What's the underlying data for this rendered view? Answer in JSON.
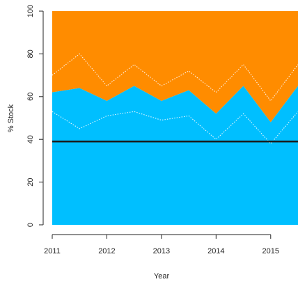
{
  "chart_data": {
    "type": "area",
    "title": "",
    "xlabel": "Year",
    "ylabel": "% Stock",
    "xlim": [
      2011,
      2015.5
    ],
    "ylim": [
      0,
      100
    ],
    "x_ticks": [
      2011,
      2012,
      2013,
      2014,
      2015
    ],
    "y_ticks": [
      0,
      20,
      40,
      60,
      80,
      100
    ],
    "x": [
      2011,
      2011.5,
      2012,
      2012.5,
      2013,
      2013.5,
      2014,
      2014.5,
      2015,
      2015.5
    ],
    "series": [
      {
        "role": "lower-area",
        "color": "#00bfff",
        "values": [
          62,
          64,
          58,
          65,
          58,
          63,
          52,
          65,
          48,
          65
        ]
      },
      {
        "role": "upper-area",
        "color": "#ff8c00",
        "values": [
          100,
          100,
          100,
          100,
          100,
          100,
          100,
          100,
          100,
          100
        ]
      },
      {
        "role": "upper-bound",
        "style": "dotted",
        "color": "#ffffff",
        "values": [
          70,
          80,
          65,
          75,
          65,
          72,
          62,
          75,
          58,
          75
        ]
      },
      {
        "role": "lower-bound",
        "style": "dotted",
        "color": "#ffffff",
        "values": [
          53,
          45,
          51,
          53,
          49,
          51,
          40,
          52,
          38,
          53
        ]
      }
    ],
    "reference_line": {
      "y": 39,
      "color": "#1a1a1a"
    },
    "grid": false,
    "legend": "none"
  }
}
